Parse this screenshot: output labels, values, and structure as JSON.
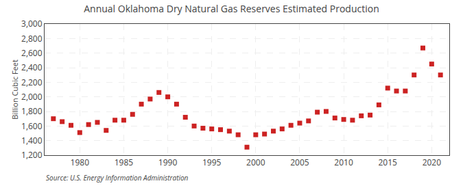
{
  "chart_data": {
    "type": "scatter",
    "title": "Annual Oklahoma Dry Natural Gas Reserves Estimated Production",
    "ylabel": "Billion Cubic Feet",
    "annotations": [
      "Source: U.S. Energy Information Administration"
    ],
    "x": [
      1977,
      1978,
      1979,
      1980,
      1981,
      1982,
      1983,
      1984,
      1985,
      1986,
      1987,
      1988,
      1989,
      1990,
      1991,
      1992,
      1993,
      1994,
      1995,
      1996,
      1997,
      1998,
      1999,
      2000,
      2001,
      2002,
      2003,
      2004,
      2005,
      2006,
      2007,
      2008,
      2009,
      2010,
      2011,
      2012,
      2013,
      2014,
      2015,
      2016,
      2017,
      2018,
      2019,
      2020,
      2021
    ],
    "values": [
      1700,
      1660,
      1610,
      1510,
      1620,
      1650,
      1540,
      1680,
      1680,
      1760,
      1900,
      1970,
      2060,
      2000,
      1900,
      1720,
      1600,
      1570,
      1560,
      1550,
      1530,
      1480,
      1310,
      1480,
      1490,
      1530,
      1560,
      1610,
      1640,
      1670,
      1790,
      1800,
      1710,
      1690,
      1680,
      1740,
      1750,
      1890,
      2120,
      2080,
      2080,
      2300,
      2670,
      2450,
      2300
    ],
    "color": "#cc2222",
    "marker": "square",
    "xlim": [
      1976,
      2022
    ],
    "ylim": [
      1200,
      3000
    ],
    "xticks": [
      1980,
      1985,
      1990,
      1995,
      2000,
      2005,
      2010,
      2015,
      2020
    ],
    "yticks": [
      {
        "value": 1200,
        "label": "1,200"
      },
      {
        "value": 1400,
        "label": "1,400"
      },
      {
        "value": 1600,
        "label": "1,600"
      },
      {
        "value": 1800,
        "label": "1,800"
      },
      {
        "value": 2000,
        "label": "2,000"
      },
      {
        "value": 2200,
        "label": "2,200"
      },
      {
        "value": 2400,
        "label": "2,400"
      },
      {
        "value": 2600,
        "label": "2,600"
      },
      {
        "value": 2800,
        "label": "2,800"
      },
      {
        "value": 3000,
        "label": "3,000"
      }
    ],
    "grid": true
  }
}
